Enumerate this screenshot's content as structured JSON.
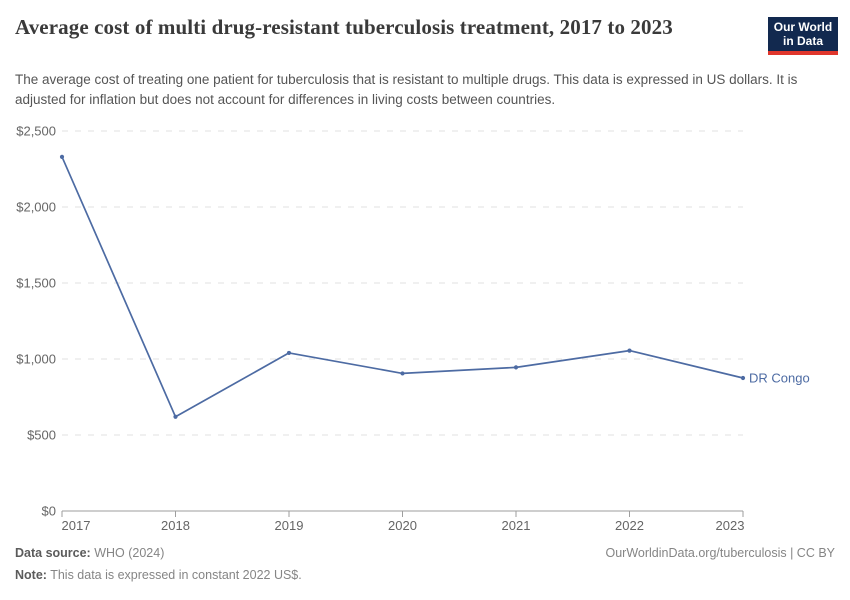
{
  "header": {
    "title": "Average cost of multi drug-resistant tuberculosis treatment, 2017 to 2023",
    "subtitle": "The average cost of treating one patient for tuberculosis that is resistant to multiple drugs. This data is expressed in US dollars. It is adjusted for inflation but does not account for differences in living costs between countries.",
    "logo": {
      "line1": "Our World",
      "line2": "in Data",
      "bg_color": "#12294f",
      "accent_color": "#e0362c"
    }
  },
  "chart_data": {
    "type": "line",
    "title": "Average cost of multi drug-resistant tuberculosis treatment, 2017 to 2023",
    "x": [
      2017,
      2018,
      2019,
      2020,
      2021,
      2022,
      2023
    ],
    "series": [
      {
        "name": "DR Congo",
        "color": "#4d6ba3",
        "values": [
          2330,
          620,
          1040,
          905,
          945,
          1055,
          875
        ]
      }
    ],
    "xlabel": "",
    "ylabel": "",
    "ylim": [
      0,
      2500
    ],
    "yticks": [
      {
        "value": 0,
        "label": "$0"
      },
      {
        "value": 500,
        "label": "$500"
      },
      {
        "value": 1000,
        "label": "$1,000"
      },
      {
        "value": 1500,
        "label": "$1,500"
      },
      {
        "value": 2000,
        "label": "$2,000"
      },
      {
        "value": 2500,
        "label": "$2,500"
      }
    ],
    "grid": "horizontal-dashed",
    "legend_position": "end-of-line-label",
    "grid_color": "#e1e1e1",
    "axis_color": "#9e9e9e",
    "tick_label_color": "#666666"
  },
  "footer": {
    "datasource_label": "Data source:",
    "datasource_value": " WHO (2024)",
    "note_label": "Note:",
    "note_value": " This data is expressed in constant 2022 US$.",
    "right_text": "OurWorldinData.org/tuberculosis | CC BY"
  }
}
